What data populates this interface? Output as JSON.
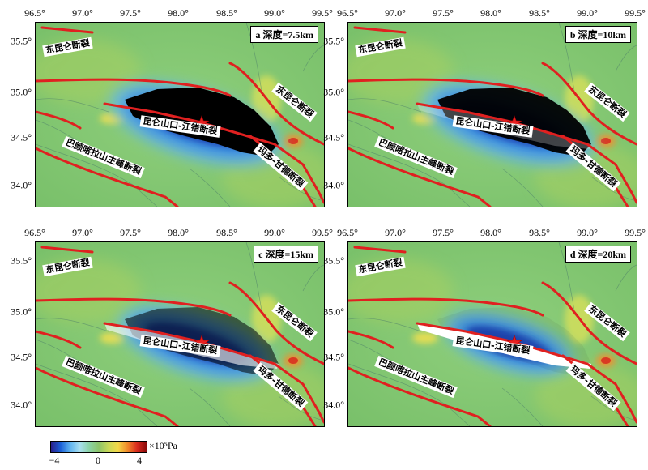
{
  "panels": [
    {
      "id": "a",
      "label": "a 深度=7.5km",
      "depth_km": 7.5
    },
    {
      "id": "b",
      "label": "b 深度=10km",
      "depth_km": 10
    },
    {
      "id": "c",
      "label": "c 深度=15km",
      "depth_km": 15
    },
    {
      "id": "d",
      "label": "d 深度=20km",
      "depth_km": 20
    }
  ],
  "x_ticks": [
    "96.5°",
    "97.0°",
    "97.5°",
    "98.0°",
    "98.5°",
    "99.0°",
    "99.5°"
  ],
  "y_ticks": [
    "35.5°",
    "35.0°",
    "34.5°",
    "34.0°"
  ],
  "faults": {
    "dongkunlun": "东昆仑断裂",
    "kunlun_jiangcuo": "昆仑山口-江错断裂",
    "maduo_gande": "玛多-甘德断裂",
    "bayankala": "巴颜喀拉山主峰断裂"
  },
  "colorbar": {
    "unit": "×10⁵Pa",
    "ticks": [
      "−4",
      "0",
      "4"
    ],
    "colors": [
      "#2a1e8a",
      "#1b5fd6",
      "#5fb3f0",
      "#a9dff0",
      "#8bd3a6",
      "#8cc46a",
      "#c8d858",
      "#f2d848",
      "#f08a2a",
      "#d82a1e",
      "#8a0a0a"
    ]
  },
  "colors": {
    "fault": "#e02020",
    "background_field": "#7cc26e",
    "epicenter": "#e82020"
  }
}
